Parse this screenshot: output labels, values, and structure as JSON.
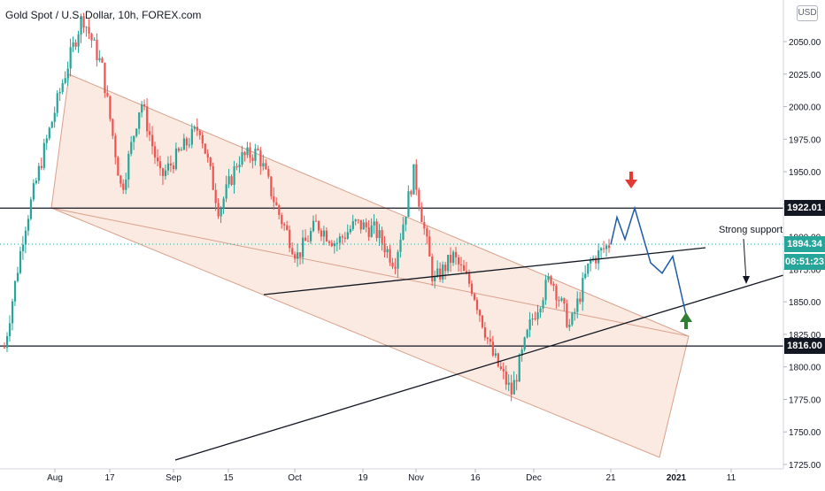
{
  "header": {
    "title": "Gold Spot / U.S. Dollar, 10h, FOREX.com",
    "currency": "USD"
  },
  "annotations": {
    "strong_support": "Strong support"
  },
  "price_tags": {
    "resistance": "1922.01",
    "last_price": "1894.34",
    "countdown": "08:51:23",
    "support": "1816.00"
  },
  "colors": {
    "up": "#26a69a",
    "down": "#ef5350",
    "channel_fill": "#f8d8c8",
    "channel_stroke": "#d9a08c",
    "projection": "#1e5aa8",
    "arrow_down": "#e53935",
    "arrow_up": "#2e7d32",
    "tag_dark": "#131722",
    "tag_blue": "#2962ff"
  },
  "chart_data": {
    "type": "candlestick",
    "title": "Gold Spot / U.S. Dollar, 10h, FOREX.com",
    "y_axis": {
      "range": [
        1712,
        2090
      ],
      "ticks": [
        "2050.00",
        "2025.00",
        "2000.00",
        "1975.00",
        "1950.00",
        "1925.00",
        "1900.00",
        "1875.00",
        "1850.00",
        "1825.00",
        "1800.00",
        "1775.00",
        "1750.00",
        "1725.00"
      ]
    },
    "x_axis": {
      "ticks": [
        "Aug",
        "17",
        "Sep",
        "15",
        "Oct",
        "19",
        "Nov",
        "16",
        "Dec",
        "21",
        "2021",
        "11"
      ]
    },
    "price_path": [
      [
        "Aug",
        1815
      ],
      [
        "Aug",
        1905
      ],
      [
        "Aug",
        1965
      ],
      [
        "Aug",
        2020
      ],
      [
        "Aug",
        2070
      ],
      [
        "Aug",
        2030
      ],
      [
        "17",
        1935
      ],
      [
        "17",
        2005
      ],
      [
        "17",
        1945
      ],
      [
        "Sep",
        1965
      ],
      [
        "Sep",
        1985
      ],
      [
        "Sep",
        1920
      ],
      [
        "15",
        1960
      ],
      [
        "15",
        1965
      ],
      [
        "15",
        1920
      ],
      [
        "Oct",
        1885
      ],
      [
        "Oct",
        1910
      ],
      [
        "Oct",
        1895
      ],
      [
        "19",
        1910
      ],
      [
        "19",
        1905
      ],
      [
        "Nov",
        1880
      ],
      [
        "Nov",
        1950
      ],
      [
        "Nov",
        1865
      ],
      [
        "16",
        1885
      ],
      [
        "16",
        1860
      ],
      [
        "16",
        1810
      ],
      [
        "Dec",
        1780
      ],
      [
        "Dec",
        1835
      ],
      [
        "Dec",
        1870
      ],
      [
        "Dec",
        1830
      ],
      [
        "21",
        1880
      ],
      [
        "21",
        1894.34
      ]
    ],
    "horizontal_levels": [
      1922.01,
      1816.0
    ],
    "last_price": 1894.34,
    "projection_path": [
      1894,
      1915,
      1898,
      1922,
      1880,
      1872,
      1885,
      1840
    ],
    "legend": "none",
    "grid": false
  }
}
